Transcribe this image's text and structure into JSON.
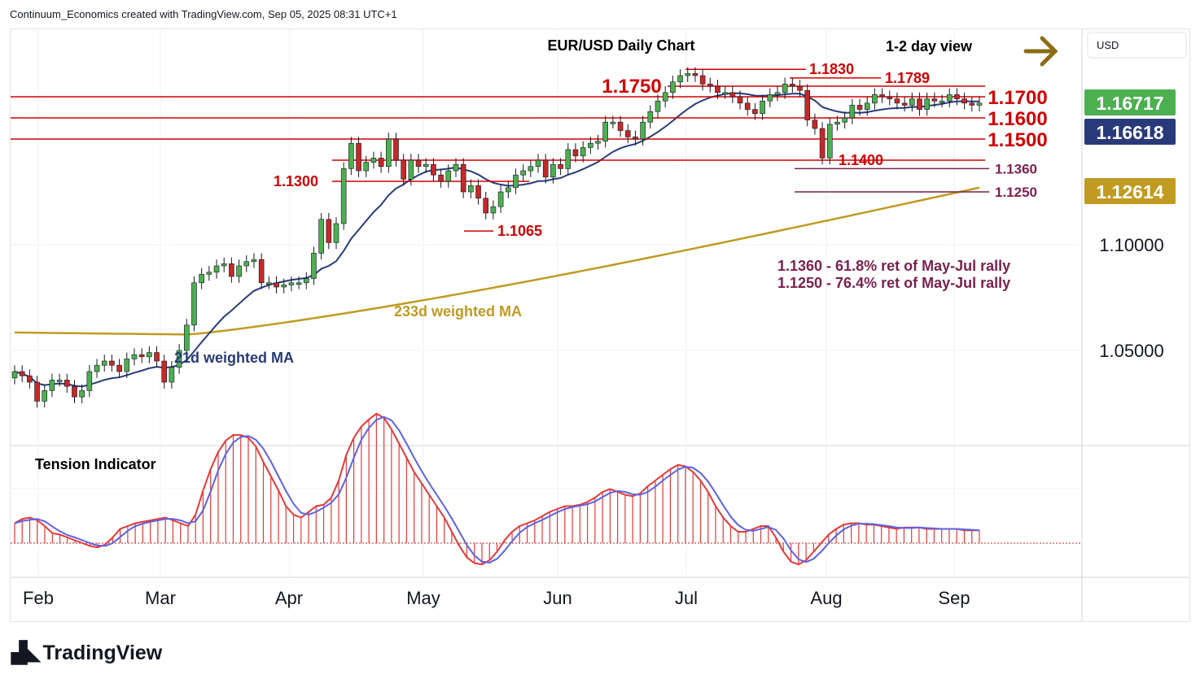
{
  "header": {
    "credit": "Continuum_Economics created with TradingView.com, Sep 05, 2025 08:31 UTC+1"
  },
  "chart_data": {
    "type": "candlestick",
    "title": "EUR/USD Daily Chart",
    "subtitle": "1-2 day view",
    "currency": "USD",
    "yticks": [
      "1.10000",
      "1.05000"
    ],
    "ytick_values": [
      1.1,
      1.05
    ],
    "xticks": [
      "Feb",
      "Mar",
      "Apr",
      "May",
      "Jun",
      "Jul",
      "Aug",
      "Sep"
    ],
    "price_badges": [
      {
        "label": "1.16717",
        "value": 1.16717,
        "color": "#4caf50"
      },
      {
        "label": "1.16618",
        "value": 1.16618,
        "color": "#283a7a"
      },
      {
        "label": "1.12614",
        "value": 1.12614,
        "color": "#c19a21"
      }
    ],
    "levels_major": [
      {
        "label": "1.1700",
        "value": 1.17
      },
      {
        "label": "1.1600",
        "value": 1.16
      },
      {
        "label": "1.1500",
        "value": 1.15
      }
    ],
    "levels_minor": [
      {
        "label": "1.1750",
        "value": 1.175
      },
      {
        "label": "1.1830",
        "value": 1.183
      },
      {
        "label": "1.1789",
        "value": 1.1789
      },
      {
        "label": "1.1400",
        "value": 1.14
      },
      {
        "label": "1.1300",
        "value": 1.13
      },
      {
        "label": "1.1065",
        "value": 1.1065
      }
    ],
    "retracements": [
      {
        "label": "1.1360",
        "value": 1.136
      },
      {
        "label": "1.1250",
        "value": 1.125
      }
    ],
    "notes": [
      "1.1360 - 61.8% ret of May-Jul rally",
      "1.1250 - 76.4% ret of May-Jul rally"
    ],
    "ma_labels": {
      "ma21": "21d weighted MA",
      "ma233": "233d weighted MA"
    },
    "colors": {
      "up": "#4caf50",
      "down": "#c62828",
      "ma21": "#283a7a",
      "ma233": "#c19a21",
      "level": "#d10000",
      "retracement": "#7a1f4e",
      "osc": "#e53935",
      "osc_signal": "#5b63e6"
    },
    "close_series": [
      1.04,
      1.038,
      1.035,
      1.026,
      1.031,
      1.036,
      1.036,
      1.033,
      1.028,
      1.031,
      1.04,
      1.043,
      1.045,
      1.043,
      1.04,
      1.046,
      1.048,
      1.047,
      1.049,
      1.045,
      1.035,
      1.042,
      1.05,
      1.062,
      1.082,
      1.086,
      1.087,
      1.09,
      1.091,
      1.085,
      1.09,
      1.092,
      1.093,
      1.082,
      1.082,
      1.08,
      1.081,
      1.082,
      1.082,
      1.084,
      1.096,
      1.112,
      1.101,
      1.11,
      1.136,
      1.148,
      1.135,
      1.139,
      1.141,
      1.137,
      1.15,
      1.14,
      1.131,
      1.14,
      1.137,
      1.138,
      1.133,
      1.13,
      1.135,
      1.138,
      1.125,
      1.128,
      1.122,
      1.115,
      1.118,
      1.125,
      1.127,
      1.133,
      1.135,
      1.137,
      1.14,
      1.132,
      1.138,
      1.136,
      1.145,
      1.142,
      1.146,
      1.148,
      1.149,
      1.158,
      1.158,
      1.154,
      1.151,
      1.15,
      1.158,
      1.163,
      1.168,
      1.172,
      1.177,
      1.18,
      1.181,
      1.18,
      1.176,
      1.175,
      1.172,
      1.172,
      1.17,
      1.167,
      1.164,
      1.162,
      1.168,
      1.171,
      1.172,
      1.176,
      1.175,
      1.173,
      1.159,
      1.155,
      1.141,
      1.157,
      1.158,
      1.16,
      1.166,
      1.164,
      1.167,
      1.171,
      1.17,
      1.169,
      1.167,
      1.166,
      1.169,
      1.164,
      1.169,
      1.168,
      1.168,
      1.171,
      1.169,
      1.167,
      1.166,
      1.167
    ]
  },
  "tension": {
    "label": "Tension Indicator",
    "values": [
      0.72,
      0.75,
      0.76,
      0.74,
      0.7,
      0.65,
      0.64,
      0.62,
      0.6,
      0.58,
      0.56,
      0.55,
      0.57,
      0.62,
      0.68,
      0.7,
      0.72,
      0.73,
      0.74,
      0.75,
      0.76,
      0.74,
      0.72,
      0.7,
      0.78,
      0.95,
      1.1,
      1.22,
      1.3,
      1.34,
      1.34,
      1.32,
      1.26,
      1.15,
      1.05,
      0.95,
      0.84,
      0.78,
      0.76,
      0.8,
      0.84,
      0.85,
      0.9,
      1.02,
      1.2,
      1.32,
      1.4,
      1.45,
      1.49,
      1.46,
      1.38,
      1.28,
      1.18,
      1.08,
      1.0,
      0.92,
      0.84,
      0.76,
      0.66,
      0.56,
      0.48,
      0.44,
      0.43,
      0.46,
      0.52,
      0.6,
      0.66,
      0.7,
      0.72,
      0.74,
      0.77,
      0.8,
      0.82,
      0.84,
      0.84,
      0.85,
      0.87,
      0.9,
      0.94,
      0.96,
      0.94,
      0.92,
      0.91,
      0.93,
      0.98,
      1.02,
      1.06,
      1.1,
      1.13,
      1.12,
      1.08,
      1.02,
      0.94,
      0.84,
      0.76,
      0.7,
      0.66,
      0.66,
      0.68,
      0.7,
      0.7,
      0.62,
      0.52,
      0.45,
      0.43,
      0.46,
      0.52,
      0.58,
      0.64,
      0.68,
      0.71,
      0.72,
      0.72,
      0.71,
      0.71,
      0.7,
      0.69,
      0.68,
      0.69,
      0.69,
      0.69,
      0.68,
      0.68,
      0.68,
      0.68,
      0.68,
      0.67,
      0.67,
      0.67
    ]
  },
  "footer": {
    "brand": "TradingView"
  }
}
